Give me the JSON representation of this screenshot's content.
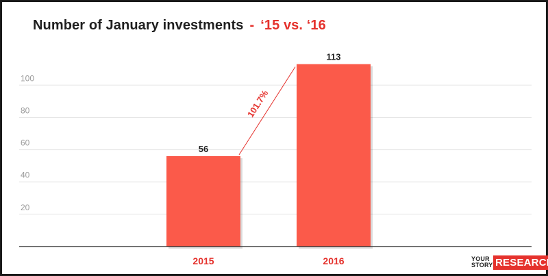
{
  "chart_data": {
    "type": "bar",
    "title": "Number of January investments",
    "title_separator": "-",
    "title_suffix": "‘15 vs. ‘16",
    "categories": [
      "2015",
      "2016"
    ],
    "values": [
      56,
      113
    ],
    "ylim": [
      0,
      120
    ],
    "yticks": [
      20,
      40,
      60,
      80,
      100
    ],
    "grid": true,
    "legend": "none",
    "annotation": {
      "text": "101.7%",
      "from_category": "2015",
      "to_category": "2016"
    },
    "colors": {
      "bar": "#fb5a4a",
      "accent": "#e5322d",
      "grid": "#e6e6e6",
      "axis": "#222222",
      "tick_label": "#9a9a9a"
    }
  },
  "branding": {
    "logo_small": [
      "YOUR",
      "STORY"
    ],
    "logo_large": "RESEARCH"
  }
}
